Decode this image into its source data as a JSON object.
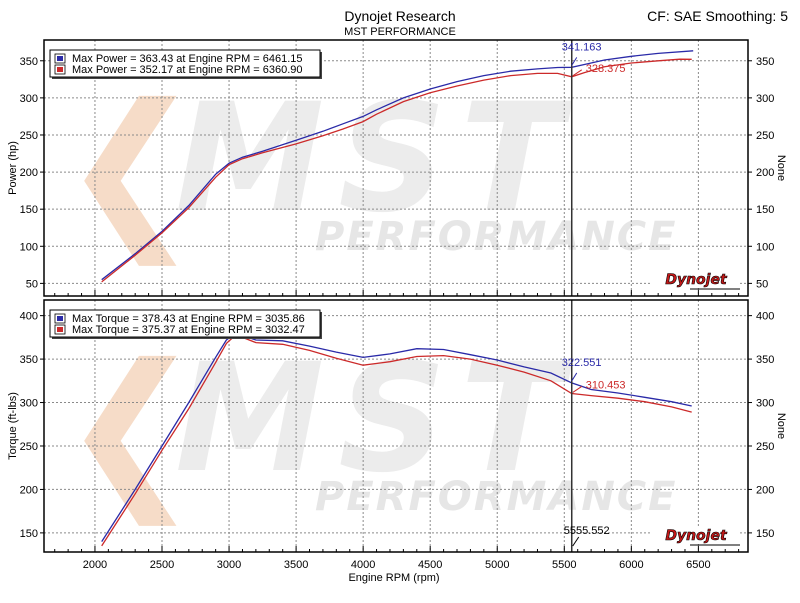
{
  "header": {
    "title": "Dynojet Research",
    "subtitle": "MST PERFORMANCE",
    "correction": "CF: SAE Smoothing: 5"
  },
  "watermark": {
    "main_text": "MST",
    "sub_text": "PERFORMANCE",
    "logo_text": "Dynojet"
  },
  "x_axis": {
    "label": "Engine RPM (rpm)",
    "ticks": [
      "2000",
      "2500",
      "3000",
      "3500",
      "4000",
      "4500",
      "5000",
      "5500",
      "6000",
      "6500"
    ]
  },
  "cursor": {
    "rpm_label": "5555.552",
    "rpm": 5555.552
  },
  "colors": {
    "blue": "#2a2aa8",
    "red": "#cc2a2a",
    "grid": "#8a8a8a"
  },
  "chart_data": [
    {
      "type": "line",
      "ylabel": "Power (hp)",
      "y2label": "None",
      "xlim": [
        1620,
        6870
      ],
      "ylim": [
        33,
        378
      ],
      "yticks": [
        "50",
        "100",
        "150",
        "200",
        "250",
        "300",
        "350"
      ],
      "legend": [
        "Max Power = 363.43 at Engine RPM = 6461.15",
        "Max Power = 352.17 at Engine RPM = 6360.90"
      ],
      "cursor_values": [
        "341.163",
        "328.375"
      ],
      "series": [
        {
          "color": "blue",
          "x": [
            2050,
            2300,
            2500,
            2700,
            2900,
            3000,
            3100,
            3250,
            3500,
            3700,
            3850,
            4000,
            4100,
            4300,
            4500,
            4700,
            4900,
            5100,
            5300,
            5450,
            5555.552,
            5650,
            5800,
            6000,
            6200,
            6461.15
          ],
          "y": [
            55,
            90,
            120,
            155,
            197,
            212,
            220,
            228,
            243,
            255,
            265,
            275,
            284,
            300,
            312,
            322,
            330,
            336,
            339,
            341,
            341.163,
            345,
            351,
            356,
            360,
            363.43
          ]
        },
        {
          "color": "red",
          "x": [
            2050,
            2300,
            2500,
            2700,
            2900,
            3000,
            3100,
            3250,
            3500,
            3700,
            3850,
            4000,
            4100,
            4300,
            4500,
            4700,
            4900,
            5100,
            5300,
            5450,
            5555.552,
            5650,
            5800,
            6000,
            6200,
            6360.9,
            6450
          ],
          "y": [
            52,
            88,
            118,
            152,
            193,
            210,
            218,
            226,
            238,
            249,
            258,
            268,
            278,
            295,
            307,
            316,
            324,
            330,
            333,
            333,
            328.375,
            334,
            342,
            347,
            350,
            352.17,
            352
          ]
        }
      ]
    },
    {
      "type": "line",
      "ylabel": "Torque (ft-lbs)",
      "y2label": "None",
      "xlim": [
        1620,
        6870
      ],
      "ylim": [
        128,
        418
      ],
      "yticks": [
        "150",
        "200",
        "250",
        "300",
        "350",
        "400"
      ],
      "legend": [
        "Max Torque = 378.43 at Engine RPM = 3035.86",
        "Max Torque = 375.37 at Engine RPM = 3032.47"
      ],
      "cursor_values": [
        "322.551",
        "310.453"
      ],
      "series": [
        {
          "color": "blue",
          "x": [
            2050,
            2300,
            2500,
            2700,
            2900,
            2980,
            3035.86,
            3100,
            3200,
            3400,
            3600,
            3800,
            4000,
            4200,
            4400,
            4600,
            4800,
            5000,
            5200,
            5400,
            5555.552,
            5700,
            5900,
            6100,
            6300,
            6450
          ],
          "y": [
            140,
            200,
            250,
            300,
            352,
            372,
            378.43,
            377,
            372,
            371,
            365,
            358,
            352,
            356,
            362,
            361,
            355,
            349,
            341,
            334,
            322.551,
            315,
            311,
            306,
            301,
            296
          ]
        },
        {
          "color": "red",
          "x": [
            2050,
            2300,
            2500,
            2700,
            2900,
            2980,
            3032.47,
            3100,
            3200,
            3400,
            3600,
            3800,
            4000,
            4200,
            4400,
            4600,
            4800,
            5000,
            5200,
            5400,
            5555.552,
            5700,
            5900,
            6100,
            6300,
            6450
          ],
          "y": [
            135,
            195,
            245,
            293,
            346,
            368,
            375.37,
            375,
            369,
            367,
            360,
            351,
            343,
            347,
            353,
            354,
            350,
            343,
            335,
            325,
            310.453,
            308,
            305,
            301,
            295,
            289
          ]
        }
      ]
    }
  ]
}
